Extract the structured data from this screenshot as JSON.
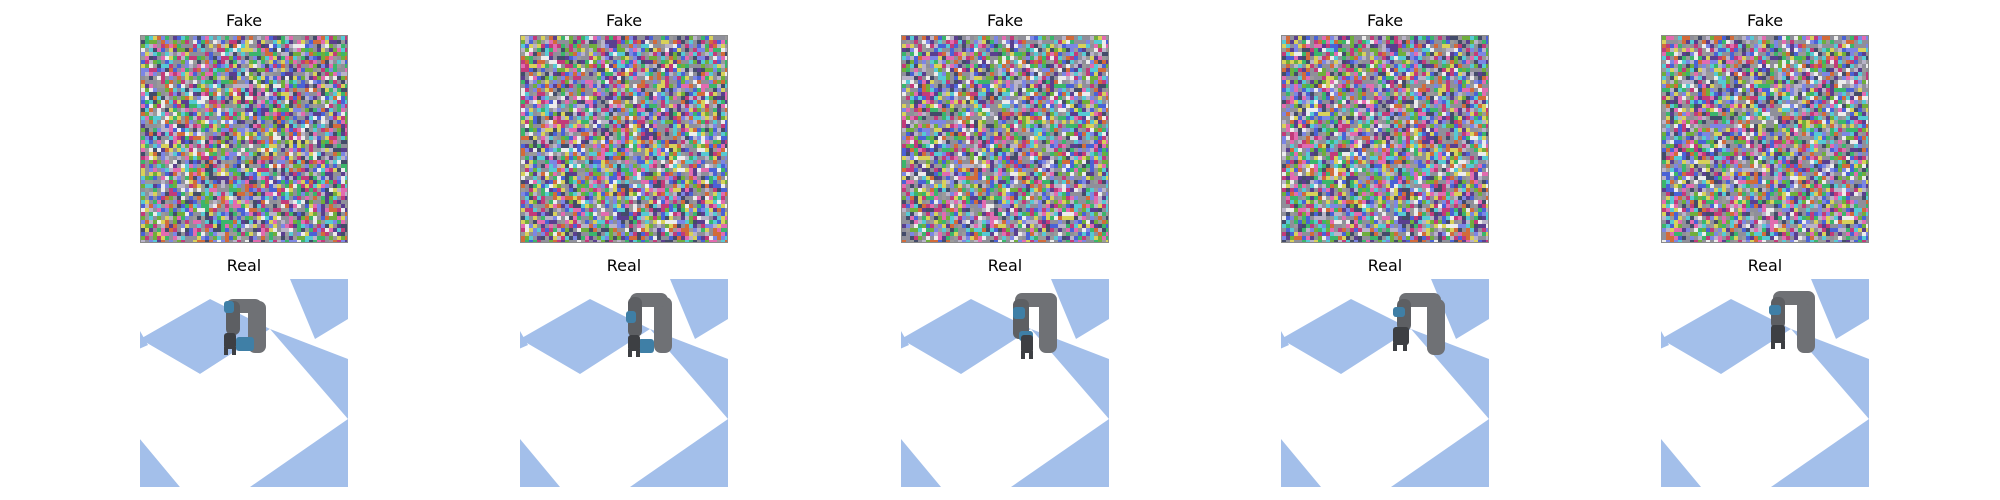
{
  "rows": [
    {
      "label": "Fake",
      "panels": [
        {
          "title": "Fake"
        },
        {
          "title": "Fake"
        },
        {
          "title": "Fake"
        },
        {
          "title": "Fake"
        },
        {
          "title": "Fake"
        }
      ]
    },
    {
      "label": "Real",
      "panels": [
        {
          "title": "Real"
        },
        {
          "title": "Real"
        },
        {
          "title": "Real"
        },
        {
          "title": "Real"
        },
        {
          "title": "Real"
        }
      ]
    }
  ],
  "colors": {
    "floor_blue": "#a3bfea",
    "floor_white": "#ffffff",
    "robot_grey": "#6f7175",
    "robot_dark": "#3d3f43",
    "gripper_blue": "#3f7fa6",
    "noise_frame": "#8a8a8a"
  }
}
